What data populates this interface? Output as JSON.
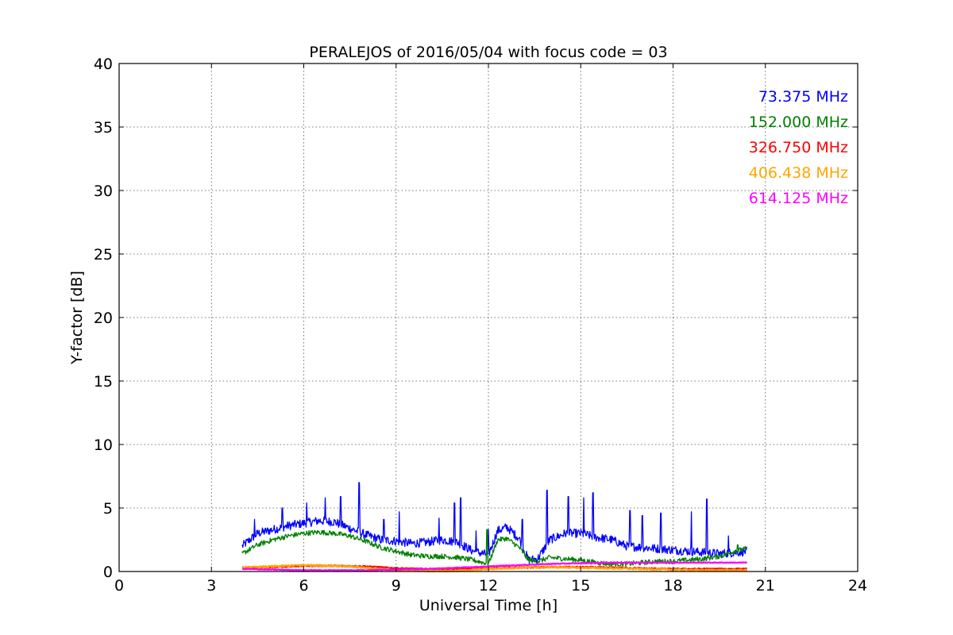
{
  "chart_data": {
    "type": "line",
    "title": "PERALEJOS of 2016/05/04 with focus code = 03",
    "xlabel": "Universal Time [h]",
    "ylabel": "Y-factor [dB]",
    "xlim": [
      0,
      24
    ],
    "ylim": [
      0,
      40
    ],
    "xticks": [
      0,
      3,
      6,
      9,
      12,
      15,
      18,
      21,
      24
    ],
    "yticks": [
      0,
      5,
      10,
      15,
      20,
      25,
      30,
      35,
      40
    ],
    "xtick_labels": [
      "0",
      "3",
      "6",
      "9",
      "12",
      "15",
      "18",
      "21",
      "24"
    ],
    "ytick_labels": [
      "0",
      "5",
      "10",
      "15",
      "20",
      "25",
      "30",
      "35",
      "40"
    ],
    "grid": true,
    "legend_position": "top-right",
    "series": [
      {
        "name": "73.375 MHz",
        "color": "#0000ff",
        "noise": 0.35,
        "x": [
          4.0,
          4.5,
          5.0,
          5.5,
          6.0,
          6.5,
          7.0,
          7.5,
          8.0,
          8.5,
          9.0,
          9.5,
          10.0,
          10.5,
          11.0,
          11.5,
          12.0,
          12.3,
          12.6,
          13.0,
          13.3,
          13.6,
          14.0,
          14.5,
          15.0,
          15.5,
          16.0,
          16.5,
          17.0,
          17.5,
          18.0,
          18.5,
          19.0,
          19.5,
          20.0,
          20.4
        ],
        "y": [
          2.0,
          3.0,
          3.3,
          3.6,
          3.8,
          4.0,
          3.9,
          3.4,
          2.9,
          2.5,
          2.4,
          2.2,
          2.3,
          2.5,
          2.3,
          1.6,
          1.3,
          3.2,
          3.5,
          2.6,
          0.9,
          1.0,
          2.5,
          3.0,
          3.0,
          2.7,
          2.5,
          2.0,
          1.9,
          1.8,
          1.7,
          1.6,
          1.5,
          1.4,
          1.5,
          1.6
        ],
        "spikes": [
          [
            4.4,
            4.1
          ],
          [
            5.3,
            5.0
          ],
          [
            6.1,
            5.4
          ],
          [
            6.7,
            5.8
          ],
          [
            7.2,
            5.9
          ],
          [
            7.8,
            7.0
          ],
          [
            8.6,
            4.1
          ],
          [
            9.1,
            4.7
          ],
          [
            10.4,
            4.2
          ],
          [
            10.9,
            5.4
          ],
          [
            11.1,
            5.8
          ],
          [
            11.6,
            3.2
          ],
          [
            12.0,
            3.3
          ],
          [
            13.1,
            4.1
          ],
          [
            13.9,
            6.4
          ],
          [
            14.6,
            5.9
          ],
          [
            15.1,
            5.8
          ],
          [
            15.4,
            6.2
          ],
          [
            16.6,
            4.8
          ],
          [
            17.0,
            4.4
          ],
          [
            17.6,
            4.6
          ],
          [
            18.6,
            4.7
          ],
          [
            19.1,
            5.7
          ],
          [
            19.8,
            2.8
          ]
        ]
      },
      {
        "name": "152.000 MHz",
        "color": "#008000",
        "noise": 0.2,
        "x": [
          4.0,
          4.5,
          5.0,
          5.5,
          6.0,
          6.5,
          7.0,
          7.5,
          8.0,
          8.5,
          9.0,
          9.5,
          10.0,
          10.5,
          11.0,
          11.5,
          12.0,
          12.3,
          12.6,
          13.0,
          13.3,
          13.6,
          14.0,
          14.5,
          15.0,
          15.5,
          16.0,
          16.5,
          17.0,
          17.5,
          18.0,
          18.5,
          19.0,
          19.5,
          20.0,
          20.4
        ],
        "y": [
          1.4,
          2.1,
          2.5,
          2.8,
          3.0,
          3.1,
          3.0,
          2.8,
          2.4,
          1.9,
          1.6,
          1.3,
          1.2,
          1.2,
          1.1,
          0.9,
          0.6,
          2.5,
          2.6,
          1.9,
          0.9,
          0.8,
          1.1,
          1.0,
          0.9,
          0.7,
          0.6,
          0.6,
          0.7,
          0.8,
          0.8,
          0.9,
          1.0,
          1.2,
          1.6,
          1.8
        ],
        "spikes": [
          [
            11.95,
            3.3
          ],
          [
            20.1,
            2.1
          ]
        ]
      },
      {
        "name": "326.750 MHz",
        "color": "#ff0000",
        "noise": 0.05,
        "x": [
          4.0,
          5.0,
          6.0,
          7.0,
          8.0,
          9.0,
          10.0,
          11.0,
          12.0,
          13.0,
          14.0,
          15.0,
          16.0,
          17.0,
          18.0,
          19.0,
          20.0,
          20.4
        ],
        "y": [
          0.3,
          0.35,
          0.45,
          0.45,
          0.4,
          0.25,
          0.2,
          0.2,
          0.25,
          0.3,
          0.35,
          0.35,
          0.3,
          0.25,
          0.2,
          0.2,
          0.2,
          0.2
        ],
        "spikes": []
      },
      {
        "name": "406.438 MHz",
        "color": "#ffa500",
        "noise": 0.06,
        "x": [
          4.0,
          5.0,
          6.0,
          7.0,
          8.0,
          9.0,
          10.0,
          11.0,
          12.0,
          13.0,
          14.0,
          15.0,
          16.0,
          17.0,
          18.0,
          19.0,
          20.0,
          20.4
        ],
        "y": [
          0.3,
          0.4,
          0.5,
          0.45,
          0.3,
          0.1,
          0.05,
          0.05,
          0.2,
          0.3,
          0.35,
          0.3,
          0.25,
          0.2,
          0.15,
          0.1,
          0.1,
          0.1
        ],
        "spikes": []
      },
      {
        "name": "614.125 MHz",
        "color": "#ff00ff",
        "noise": 0.03,
        "x": [
          4.0,
          5.0,
          6.0,
          7.0,
          8.0,
          9.0,
          10.0,
          11.0,
          12.0,
          13.0,
          14.0,
          15.0,
          16.0,
          17.0,
          18.0,
          19.0,
          20.0,
          20.4
        ],
        "y": [
          0.2,
          0.15,
          0.1,
          0.1,
          0.1,
          0.15,
          0.2,
          0.3,
          0.4,
          0.5,
          0.6,
          0.65,
          0.7,
          0.7,
          0.7,
          0.7,
          0.7,
          0.7
        ],
        "spikes": []
      }
    ]
  }
}
